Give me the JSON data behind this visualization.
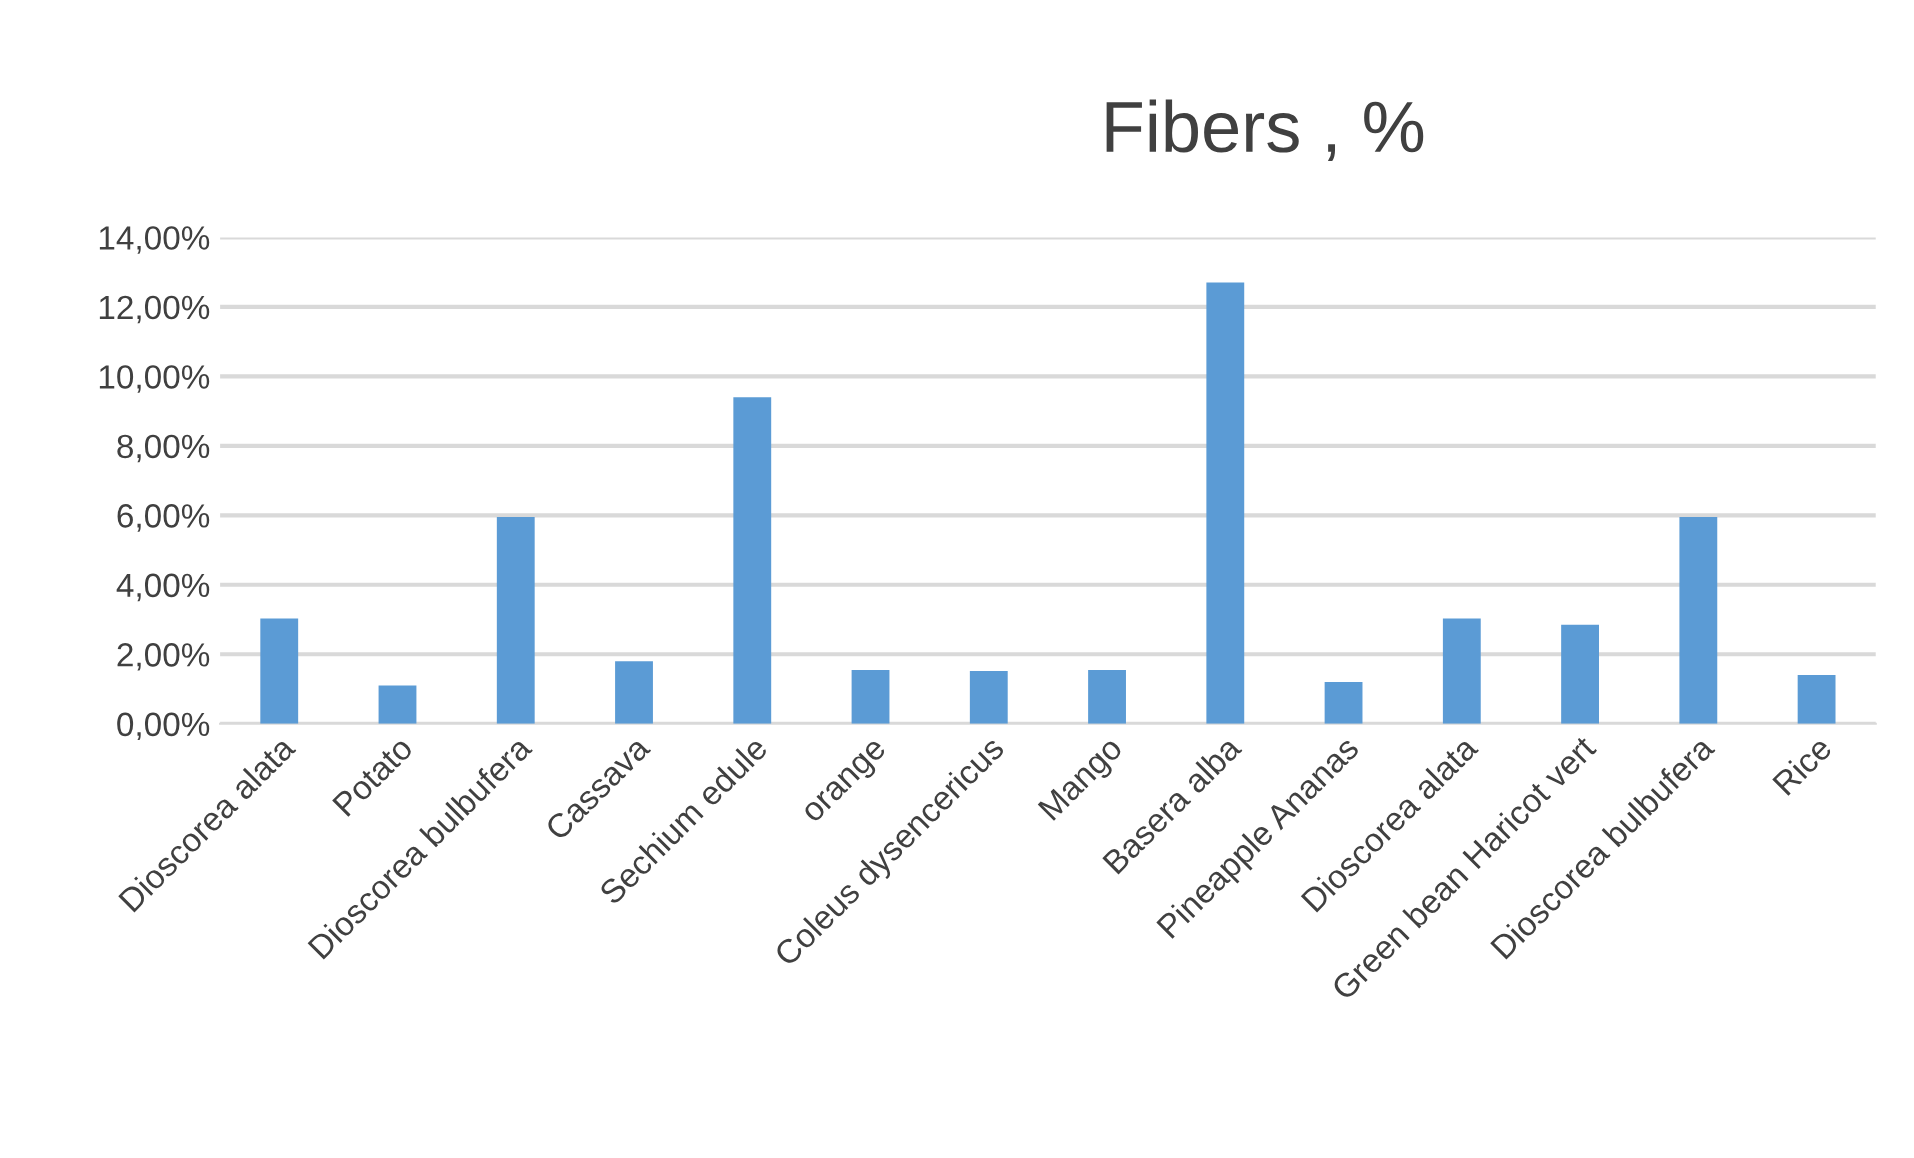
{
  "chart_data": {
    "type": "bar",
    "title": "Fibers , %",
    "categories": [
      "Dioscorea alata",
      "Potato",
      "Dioscorea bulbufera",
      "Cassava",
      "Sechium edule",
      "orange",
      "Coleus dysencericus",
      "Mango",
      "Basera alba",
      "Pineapple Ananas",
      "Dioscorea alata",
      "Green bean Haricot vert",
      "Dioscorea bulbufera",
      "Rice"
    ],
    "values": [
      3.03,
      1.1,
      5.95,
      1.8,
      9.4,
      1.55,
      1.52,
      1.55,
      12.7,
      1.2,
      3.03,
      2.85,
      5.95,
      1.4
    ],
    "color": "#5b9bd5",
    "ylim": [
      0,
      14
    ],
    "yticks": [
      {
        "value": 0,
        "label": "0,00%"
      },
      {
        "value": 2,
        "label": "2,00%"
      },
      {
        "value": 4,
        "label": "4,00%"
      },
      {
        "value": 6,
        "label": "6,00%"
      },
      {
        "value": 8,
        "label": "8,00%"
      },
      {
        "value": 10,
        "label": "10,00%"
      },
      {
        "value": 12,
        "label": "12,00%"
      },
      {
        "value": 14,
        "label": "14,00%"
      }
    ],
    "grid": "y"
  }
}
